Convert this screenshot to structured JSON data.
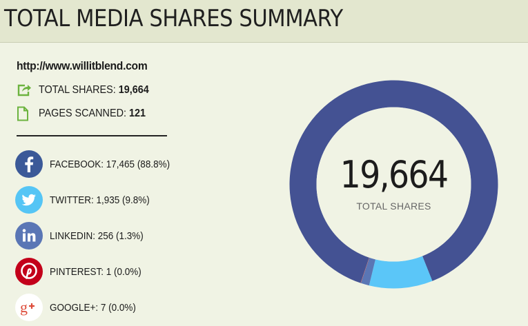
{
  "header": {
    "title": "TOTAL MEDIA SHARES SUMMARY"
  },
  "summary": {
    "url": "http://www.willitblend.com",
    "total_shares_label": "TOTAL SHARES:",
    "total_shares_value": "19,664",
    "pages_scanned_label": "PAGES SCANNED:",
    "pages_scanned_value": "121"
  },
  "networks": [
    {
      "label": "FACEBOOK: 17,465 (88.8%)",
      "icon": "facebook-icon",
      "color": "#3b5998"
    },
    {
      "label": "TWITTER: 1,935 (9.8%)",
      "icon": "twitter-icon",
      "color": "#55c5f5"
    },
    {
      "label": "LINKEDIN: 256 (1.3%)",
      "icon": "linkedin-icon",
      "color": "#5a76b5"
    },
    {
      "label": "PINTEREST: 1 (0.0%)",
      "icon": "pinterest-icon",
      "color": "#c3001a"
    },
    {
      "label": "GOOGLE+: 7 (0.0%)",
      "icon": "google-plus-icon",
      "color": "#ffffff"
    }
  ],
  "chart_data": {
    "type": "pie",
    "donut": true,
    "center_value": "19,664",
    "center_label": "TOTAL SHARES",
    "categories": [
      "Facebook",
      "Twitter",
      "LinkedIn",
      "Pinterest",
      "Google+"
    ],
    "values": [
      17465,
      1935,
      256,
      1,
      7
    ],
    "colors": [
      "#445293",
      "#5bc6f8",
      "#5a76b5",
      "#c3001a",
      "#dd4b39"
    ]
  }
}
